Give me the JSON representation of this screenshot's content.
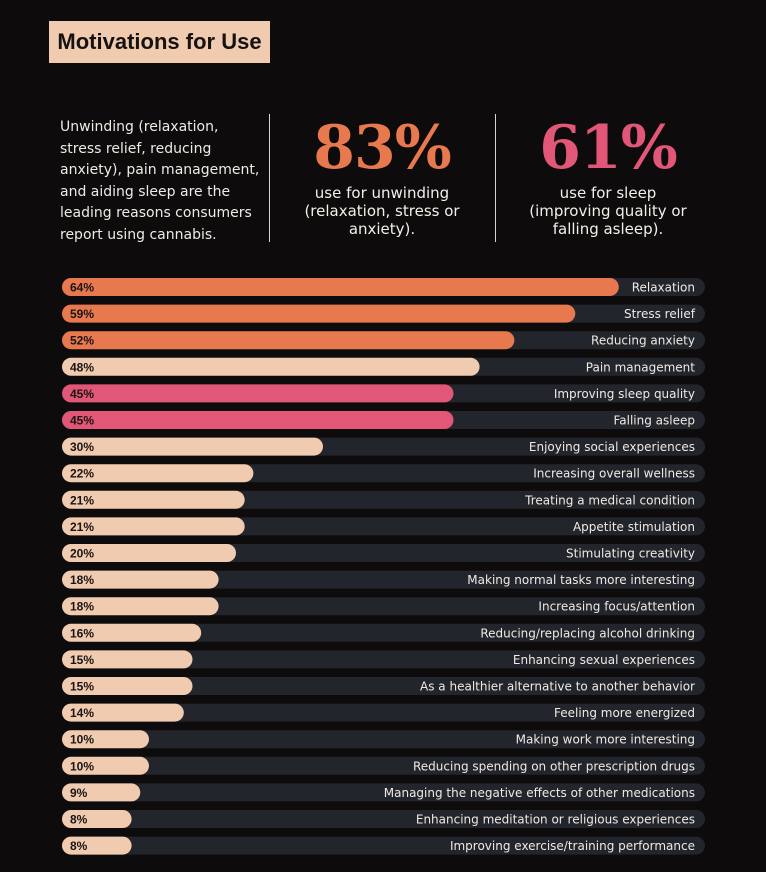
{
  "header": {
    "title": "Motivations for Use",
    "intro": "Unwinding (relaxation, stress relief, reducing anxiety), pain management, and aiding sleep are the leading reasons consumers report using cannabis."
  },
  "stats": [
    {
      "value": "83%",
      "caption": "use for unwinding (relaxation, stress or anxiety).",
      "color": "#e8784e"
    },
    {
      "value": "61%",
      "caption": "use for sleep (improving quality or falling asleep).",
      "color": "#e25777"
    }
  ],
  "colors": {
    "unwinding": "#e8784e",
    "sleep": "#e25777",
    "other": "#f0cbb0",
    "track": "#22252b"
  },
  "chart_data": {
    "type": "bar",
    "orientation": "horizontal",
    "ylim": [
      0,
      100
    ],
    "grid": false,
    "items": [
      {
        "label": "Relaxation",
        "value": 64,
        "display": "64%",
        "group": "unwinding"
      },
      {
        "label": "Stress relief",
        "value": 59,
        "display": "59%",
        "group": "unwinding"
      },
      {
        "label": "Reducing anxiety",
        "value": 52,
        "display": "52%",
        "group": "unwinding"
      },
      {
        "label": "Pain management",
        "value": 48,
        "display": "48%",
        "group": "other"
      },
      {
        "label": "Improving sleep quality",
        "value": 45,
        "display": "45%",
        "group": "sleep"
      },
      {
        "label": "Falling asleep",
        "value": 45,
        "display": "45%",
        "group": "sleep"
      },
      {
        "label": "Enjoying social experiences",
        "value": 30,
        "display": "30%",
        "group": "other"
      },
      {
        "label": "Increasing overall wellness",
        "value": 22,
        "display": "22%",
        "group": "other"
      },
      {
        "label": "Treating a medical condition",
        "value": 21,
        "display": "21%",
        "group": "other"
      },
      {
        "label": "Appetite stimulation",
        "value": 21,
        "display": "21%",
        "group": "other"
      },
      {
        "label": "Stimulating creativity",
        "value": 20,
        "display": "20%",
        "group": "other"
      },
      {
        "label": "Making normal tasks more interesting",
        "value": 18,
        "display": "18%",
        "group": "other"
      },
      {
        "label": "Increasing focus/attention",
        "value": 18,
        "display": "18%",
        "group": "other"
      },
      {
        "label": "Reducing/replacing alcohol drinking",
        "value": 16,
        "display": "16%",
        "group": "other"
      },
      {
        "label": "Enhancing sexual experiences",
        "value": 15,
        "display": "15%",
        "group": "other"
      },
      {
        "label": "As a healthier alternative to another behavior",
        "value": 15,
        "display": "15%",
        "group": "other"
      },
      {
        "label": "Feeling more energized",
        "value": 14,
        "display": "14%",
        "group": "other"
      },
      {
        "label": "Making work more interesting",
        "value": 10,
        "display": "10%",
        "group": "other"
      },
      {
        "label": "Reducing spending on other prescription drugs",
        "value": 10,
        "display": "10%",
        "group": "other"
      },
      {
        "label": "Managing the negative effects of other medications",
        "value": 9,
        "display": "9%",
        "group": "other"
      },
      {
        "label": "Enhancing meditation or religious experiences",
        "value": 8,
        "display": "8%",
        "group": "other"
      },
      {
        "label": "Improving exercise/training performance",
        "value": 8,
        "display": "8%",
        "group": "other"
      }
    ]
  }
}
